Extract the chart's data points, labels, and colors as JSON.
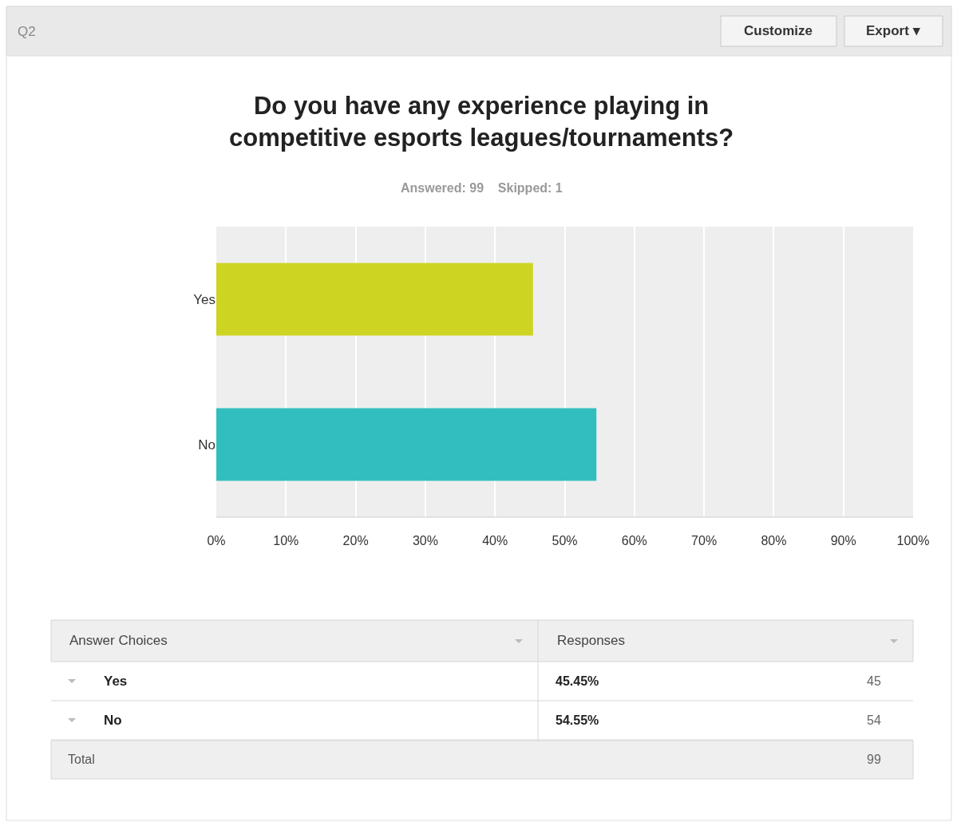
{
  "chart_data": {
    "type": "bar",
    "orientation": "horizontal",
    "title": "Do you have any experience playing in\ncompetitive esports leagues/tournaments?",
    "subtitle": "Answered: 99    Skipped: 1",
    "categories": [
      "Yes",
      "No"
    ],
    "values": [
      45.45,
      54.55
    ],
    "colors": [
      "#cdd422",
      "#32bebe"
    ],
    "xlim": [
      0,
      100
    ],
    "xticks": [
      {
        "value": 0,
        "label": "0%"
      },
      {
        "value": 10,
        "label": "10%"
      },
      {
        "value": 20,
        "label": "20%"
      },
      {
        "value": 30,
        "label": "30%"
      },
      {
        "value": 40,
        "label": "40%"
      },
      {
        "value": 50,
        "label": "50%"
      },
      {
        "value": 60,
        "label": "60%"
      },
      {
        "value": 70,
        "label": "70%"
      },
      {
        "value": 80,
        "label": "80%"
      },
      {
        "value": 90,
        "label": "90%"
      },
      {
        "value": 100,
        "label": "100%"
      }
    ],
    "grid": "x",
    "legend": false,
    "annotations": [
      "Q2",
      "Customize",
      "Export ▾",
      "Answer Choices",
      "Responses",
      "45",
      "54",
      "Total",
      "99",
      "45.45%",
      "54.55%"
    ]
  }
}
